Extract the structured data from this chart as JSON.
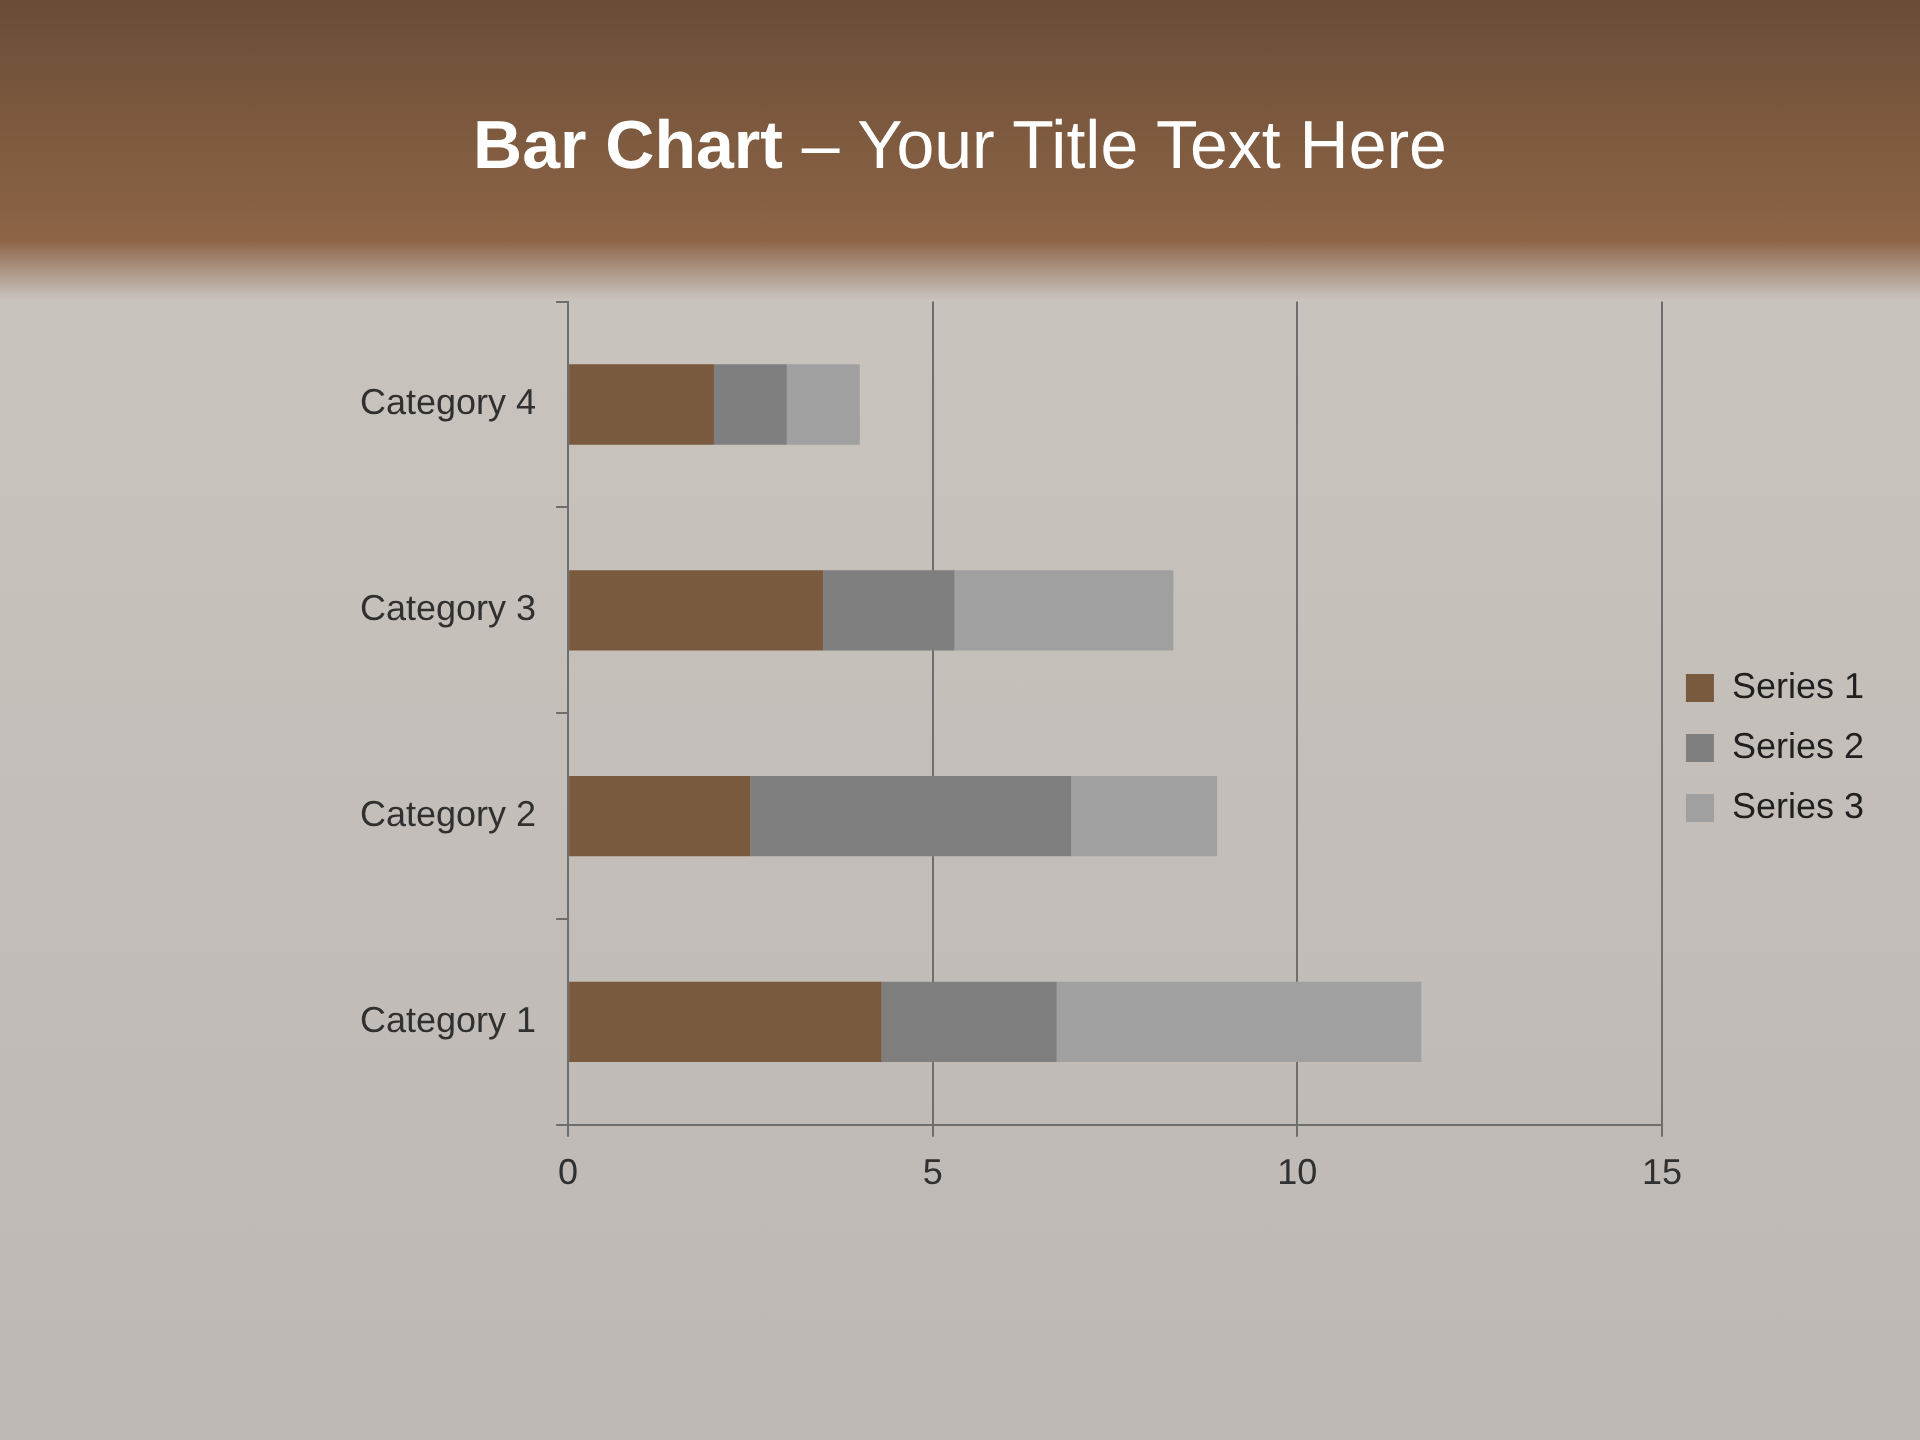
{
  "chart_data": {
    "type": "bar",
    "title": "Bar Chart – Your Title Text Here",
    "orientation": "horizontal",
    "stacked": true,
    "categories": [
      "Category 4",
      "Category 3",
      "Category 2",
      "Category 1"
    ],
    "series": [
      {
        "name": "Series 1",
        "color": "#7a5a3e",
        "values": [
          2,
          3.5,
          2.5,
          4.3
        ]
      },
      {
        "name": "Series 2",
        "color": "#7f7f7f",
        "values": [
          1,
          1.8,
          4.4,
          2.4
        ]
      },
      {
        "name": "Series 3",
        "color": "#a0a0a0",
        "values": [
          1,
          3,
          2,
          5
        ]
      }
    ],
    "xlim": [
      0,
      15
    ],
    "xticks": [
      0,
      5,
      10,
      15
    ],
    "grid": "x",
    "legend": "right"
  }
}
